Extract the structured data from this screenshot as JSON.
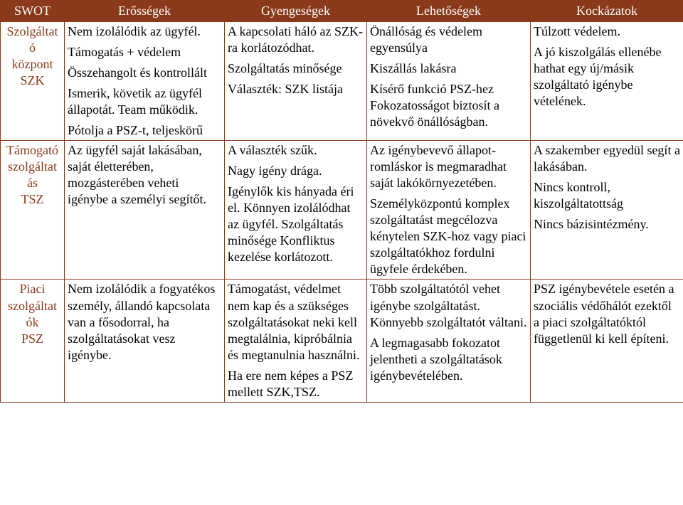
{
  "colors": {
    "header_bg": "#8a3a1a",
    "header_text": "#ffffff",
    "border": "#8a3a1a",
    "rowhead_text": "#8a3a1a",
    "body_text": "#000000",
    "page_bg": "#ffffff"
  },
  "header": {
    "c0": "SWOT",
    "c1": "Erősségek",
    "c2": "Gyengeségek",
    "c3": "Lehetőségek",
    "c4": "Kockázatok"
  },
  "rows": [
    {
      "label_lines": [
        "Szolgáltat",
        "ó",
        "központ",
        "SZK"
      ],
      "strengths": [
        "Nem izolálódik  az ügyfél.",
        "Támogatás + védelem",
        "Összehangolt és kontrollált",
        "Ismerik, követik az ügyfél állapotát. Team működik.",
        "Pótolja a PSZ-t, teljeskörű"
      ],
      "weaknesses": [
        "A kapcsolati háló az SZK-ra korlátozódhat.",
        "Szolgáltatás minősége",
        "Választék: SZK  listája"
      ],
      "opportunities": [
        "Önállóság és védelem egyensúlya",
        "Kiszállás lakásra",
        "Kísérő funkció PSZ-hez Fokozatosságot biztosít a növekvő önállóságban."
      ],
      "risks": [
        "Túlzott védelem.",
        "A jó kiszolgálás ellenébe hathat egy új/másik szolgáltató igénybe vételének."
      ]
    },
    {
      "label_lines": [
        "Támogató",
        "szolgáltat",
        "ás",
        "TSZ"
      ],
      "strengths": [
        "Az ügyfél saját lakásában, saját életterében, mozgásterében veheti igénybe a személyi segítőt."
      ],
      "weaknesses": [
        "A választék szűk.",
        "Nagy igény drága.",
        "Igénylők kis hányada éri el. Könnyen izolálódhat az ügyfél. Szolgáltatás minősége Konfliktus kezelése korlátozott."
      ],
      "opportunities": [
        "Az igénybevevő állapot-romláskor is megmaradhat saját lakókörnyezetében.",
        "Személyközpontú komplex szolgáltatást megcélozva kénytelen SZK-hoz vagy piaci szolgáltatókhoz fordulni ügyfele érdekében."
      ],
      "risks": [
        "A szakember egyedül segít a lakásában.",
        "Nincs kontroll, kiszolgáltatottság",
        "Nincs bázisintézmény."
      ]
    },
    {
      "label_lines": [
        "Piaci",
        "szolgáltat",
        "ók",
        "PSZ"
      ],
      "strengths": [
        "Nem izolálódik a fogyatékos személy, állandó kapcsolata van a fősodorral, ha szolgáltatásokat vesz igénybe."
      ],
      "weaknesses": [
        "Támogatást, védelmet nem kap és a szükséges szolgáltatásokat neki kell megtalálnia, kipróbálnia és megtanulnia használni.",
        "Ha ere nem képes a PSZ mellett SZK,TSZ."
      ],
      "opportunities": [
        "Több szolgáltatótól vehet igénybe szolgáltatást. Könnyebb szolgáltatót váltani.",
        "A legmagasabb fokozatot jelentheti  a szolgáltatások igénybevételében."
      ],
      "risks": [
        "PSZ igénybevétele esetén a szociális védőhálót ezektől a piaci szolgáltatóktól függetlenül ki kell építeni."
      ]
    }
  ]
}
